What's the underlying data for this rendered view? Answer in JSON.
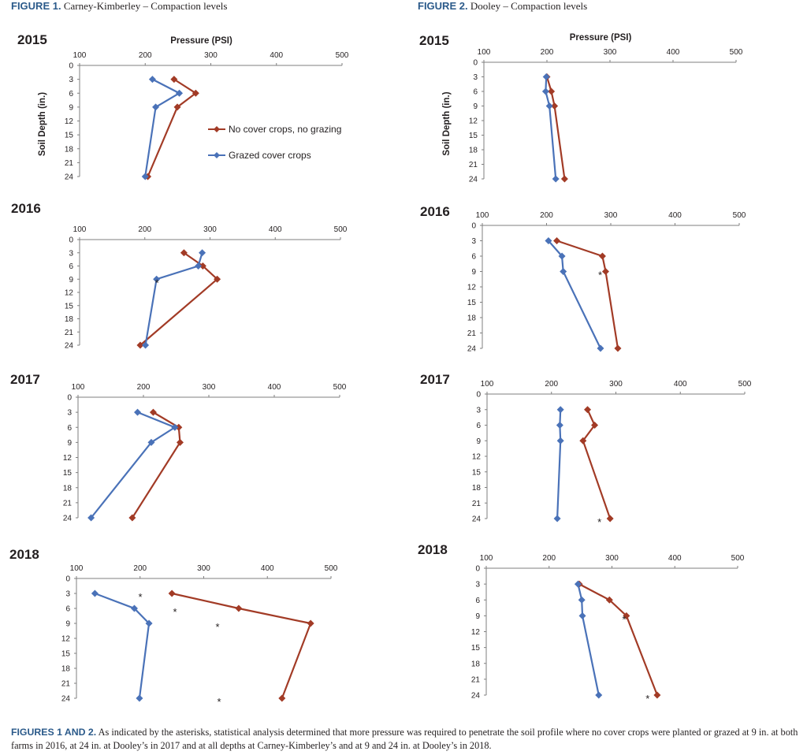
{
  "figure1": {
    "label": "FIGURE 1.",
    "title": "Carney-Kimberley  – Compaction levels"
  },
  "figure2": {
    "label": "FIGURE 2.",
    "title": "Dooley  – Compaction levels"
  },
  "caption": {
    "label": "FIGURES 1 AND 2.",
    "text": "As indicated by the asterisks, statistical analysis determined that more pressure was required to penetrate the soil profile where no cover crops were planted or grazed at 9 in. at both farms in 2016, at 24 in. at Dooley’s in 2017 and at all depths at Carney-Kimberley’s and at 9 and 24 in. at Dooley’s in 2018."
  },
  "colors": {
    "no_cover": "#a23b26",
    "grazed": "#4a72b8"
  },
  "chart_data": [
    {
      "type": "line",
      "figure": 1,
      "year": "2015",
      "xlabel": "Pressure (PSI)",
      "ylabel": "Soil Depth (in.)",
      "xlim": [
        100,
        500
      ],
      "ylim": [
        0,
        24
      ],
      "x_ticks": [
        100,
        200,
        300,
        400,
        500
      ],
      "y_ticks": [
        0,
        3,
        6,
        9,
        12,
        15,
        18,
        21,
        24
      ],
      "legend": "center-right",
      "depths": [
        3,
        6,
        9,
        24
      ],
      "series": [
        {
          "name": "No cover crops, no grazing",
          "values": [
            244,
            277,
            249,
            204
          ]
        },
        {
          "name": "Grazed cover crops",
          "values": [
            211,
            252,
            216,
            200
          ]
        }
      ],
      "asterisk_depths": []
    },
    {
      "type": "line",
      "figure": 2,
      "year": "2015",
      "xlabel": "Pressure (PSI)",
      "ylabel": "Soil Depth (in.)",
      "xlim": [
        100,
        500
      ],
      "ylim": [
        0,
        24
      ],
      "x_ticks": [
        100,
        200,
        300,
        400,
        500
      ],
      "y_ticks": [
        0,
        3,
        6,
        9,
        12,
        15,
        18,
        21,
        24
      ],
      "depths": [
        3,
        6,
        9,
        24
      ],
      "series": [
        {
          "name": "No cover crops, no grazing",
          "values": [
            200,
            207,
            212,
            228
          ]
        },
        {
          "name": "Grazed cover crops",
          "values": [
            199,
            198,
            204,
            214
          ]
        }
      ],
      "asterisk_depths": []
    },
    {
      "type": "line",
      "figure": 1,
      "year": "2016",
      "xlim": [
        100,
        500
      ],
      "ylim": [
        0,
        24
      ],
      "x_ticks": [
        100,
        200,
        300,
        400,
        500
      ],
      "y_ticks": [
        0,
        3,
        6,
        9,
        12,
        15,
        18,
        21,
        24
      ],
      "depths": [
        3,
        6,
        9,
        24
      ],
      "series": [
        {
          "name": "No cover crops, no grazing",
          "values": [
            260,
            289,
            311,
            193
          ]
        },
        {
          "name": "Grazed cover crops",
          "values": [
            288,
            282,
            218,
            201
          ]
        }
      ],
      "asterisk_depths": [
        9
      ]
    },
    {
      "type": "line",
      "figure": 2,
      "year": "2016",
      "xlim": [
        100,
        500
      ],
      "ylim": [
        0,
        24
      ],
      "x_ticks": [
        100,
        200,
        300,
        400,
        500
      ],
      "y_ticks": [
        0,
        3,
        6,
        9,
        12,
        15,
        18,
        21,
        24
      ],
      "depths": [
        3,
        6,
        9,
        24
      ],
      "series": [
        {
          "name": "No cover crops, no grazing",
          "values": [
            216,
            287,
            292,
            311
          ]
        },
        {
          "name": "Grazed cover crops",
          "values": [
            203,
            224,
            226,
            284
          ]
        }
      ],
      "asterisk_depths": [
        9
      ]
    },
    {
      "type": "line",
      "figure": 1,
      "year": "2017",
      "xlim": [
        100,
        500
      ],
      "ylim": [
        0,
        24
      ],
      "x_ticks": [
        100,
        200,
        300,
        400,
        500
      ],
      "y_ticks": [
        0,
        3,
        6,
        9,
        12,
        15,
        18,
        21,
        24
      ],
      "depths": [
        3,
        6,
        9,
        24
      ],
      "series": [
        {
          "name": "No cover crops, no grazing",
          "values": [
            215,
            254,
            256,
            183
          ]
        },
        {
          "name": "Grazed cover crops",
          "values": [
            191,
            248,
            212,
            120
          ]
        }
      ],
      "asterisk_depths": []
    },
    {
      "type": "line",
      "figure": 2,
      "year": "2017",
      "xlim": [
        100,
        500
      ],
      "ylim": [
        0,
        24
      ],
      "x_ticks": [
        100,
        200,
        300,
        400,
        500
      ],
      "y_ticks": [
        0,
        3,
        6,
        9,
        12,
        15,
        18,
        21,
        24
      ],
      "depths": [
        3,
        6,
        9,
        24
      ],
      "series": [
        {
          "name": "No cover crops, no grazing",
          "values": [
            256,
            267,
            249,
            291
          ]
        },
        {
          "name": "Grazed cover crops",
          "values": [
            214,
            213,
            214,
            209
          ]
        }
      ],
      "asterisk_depths": [
        24
      ]
    },
    {
      "type": "line",
      "figure": 1,
      "year": "2018",
      "xlim": [
        100,
        500
      ],
      "ylim": [
        0,
        24
      ],
      "x_ticks": [
        100,
        200,
        300,
        400,
        500
      ],
      "y_ticks": [
        0,
        3,
        6,
        9,
        12,
        15,
        18,
        21,
        24
      ],
      "depths": [
        3,
        6,
        9,
        24
      ],
      "series": [
        {
          "name": "No cover crops, no grazing",
          "values": [
            250,
            355,
            468,
            423
          ]
        },
        {
          "name": "Grazed cover crops",
          "values": [
            129,
            191,
            214,
            199
          ]
        }
      ],
      "asterisk_depths": [
        3,
        6,
        9,
        24
      ]
    },
    {
      "type": "line",
      "figure": 2,
      "year": "2018",
      "xlim": [
        100,
        500
      ],
      "ylim": [
        0,
        24
      ],
      "x_ticks": [
        100,
        200,
        300,
        400,
        500
      ],
      "y_ticks": [
        0,
        3,
        6,
        9,
        12,
        15,
        18,
        21,
        24
      ],
      "depths": [
        3,
        6,
        9,
        24
      ],
      "series": [
        {
          "name": "No cover crops, no grazing",
          "values": [
            248,
            296,
            323,
            372
          ]
        },
        {
          "name": "Grazed cover crops",
          "values": [
            246,
            252,
            253,
            279
          ]
        }
      ],
      "asterisk_depths": [
        9,
        24
      ]
    }
  ]
}
